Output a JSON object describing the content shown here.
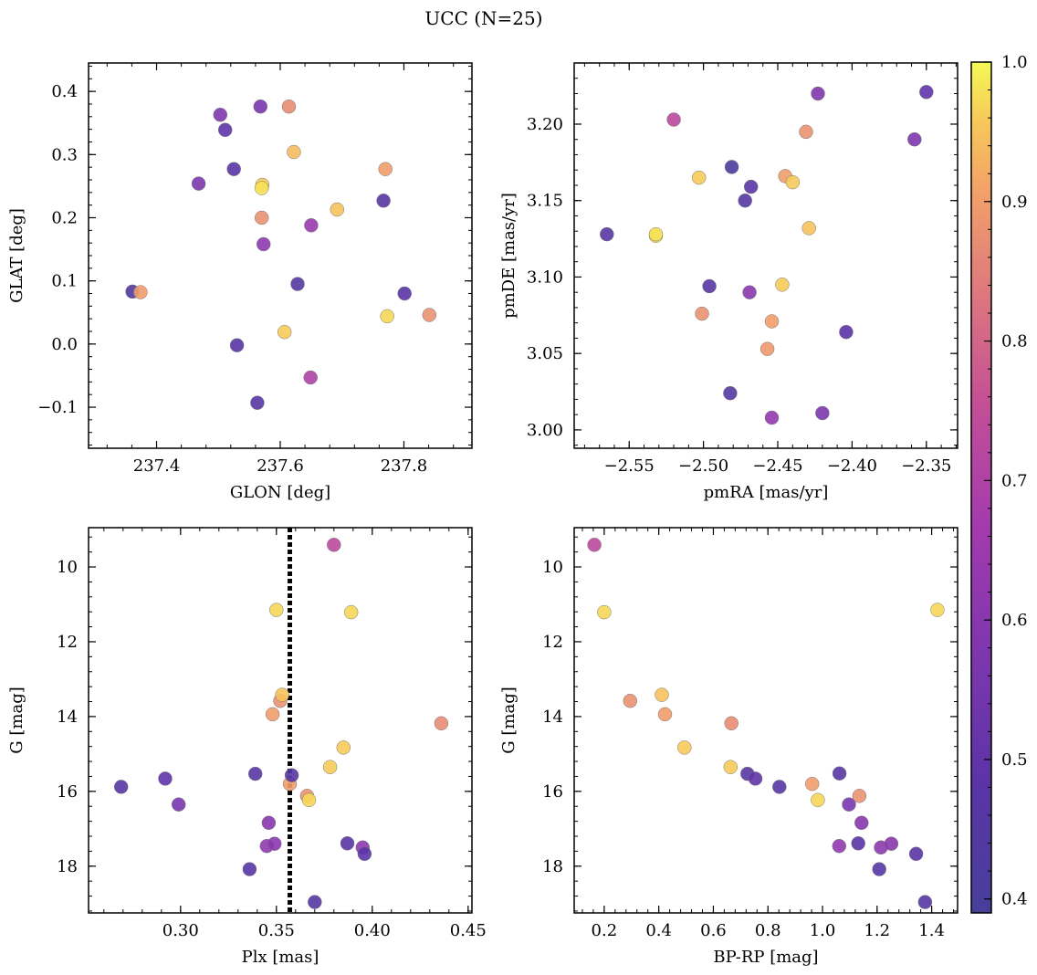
{
  "figure": {
    "title": "UCC (N=25)"
  },
  "colorbar": {
    "range": [
      0.39,
      1.0
    ],
    "ticks": [
      0.4,
      0.5,
      0.6,
      0.7,
      0.8,
      0.9,
      1.0
    ],
    "tick_labels": [
      "0.4",
      "0.5",
      "0.6",
      "0.7",
      "0.8",
      "0.9",
      "1.0"
    ],
    "colormap": "plasma",
    "colormap_stops": [
      [
        0.0,
        "#483f9a"
      ],
      [
        0.15,
        "#5a34a6"
      ],
      [
        0.3,
        "#7d36ae"
      ],
      [
        0.45,
        "#a23aae"
      ],
      [
        0.6,
        "#c44f96"
      ],
      [
        0.72,
        "#dc7580"
      ],
      [
        0.85,
        "#f3a268"
      ],
      [
        0.93,
        "#f7c85a"
      ],
      [
        1.0,
        "#f4f954"
      ]
    ]
  },
  "chart_data": [
    {
      "type": "scatter",
      "name": "sky",
      "title": "",
      "xlabel": "GLON [deg]",
      "ylabel": "GLAT [deg]",
      "xlim": [
        237.29,
        237.91
      ],
      "ylim": [
        -0.165,
        0.445
      ],
      "xticks": [
        237.4,
        237.6,
        237.8
      ],
      "xtick_labels": [
        "237.4",
        "237.6",
        "237.8"
      ],
      "yticks": [
        -0.1,
        0.0,
        0.1,
        0.2,
        0.3,
        0.4
      ],
      "ytick_labels": [
        "−0.1",
        "0.0",
        "0.1",
        "0.2",
        "0.3",
        "0.4"
      ],
      "y_inverted": false,
      "points": [
        {
          "x": 237.361,
          "y": 0.083,
          "c": 0.43
        },
        {
          "x": 237.374,
          "y": 0.082,
          "c": 0.9
        },
        {
          "x": 237.468,
          "y": 0.254,
          "c": 0.57
        },
        {
          "x": 237.503,
          "y": 0.363,
          "c": 0.58
        },
        {
          "x": 237.511,
          "y": 0.339,
          "c": 0.5
        },
        {
          "x": 237.525,
          "y": 0.277,
          "c": 0.47
        },
        {
          "x": 237.53,
          "y": -0.002,
          "c": 0.47
        },
        {
          "x": 237.563,
          "y": -0.093,
          "c": 0.47
        },
        {
          "x": 237.568,
          "y": 0.376,
          "c": 0.56
        },
        {
          "x": 237.57,
          "y": 0.2,
          "c": 0.88
        },
        {
          "x": 237.571,
          "y": 0.252,
          "c": 0.96
        },
        {
          "x": 237.57,
          "y": 0.247,
          "c": 0.98
        },
        {
          "x": 237.573,
          "y": 0.158,
          "c": 0.61
        },
        {
          "x": 237.607,
          "y": 0.019,
          "c": 0.96
        },
        {
          "x": 237.614,
          "y": 0.376,
          "c": 0.87
        },
        {
          "x": 237.622,
          "y": 0.304,
          "c": 0.94
        },
        {
          "x": 237.628,
          "y": 0.095,
          "c": 0.45
        },
        {
          "x": 237.649,
          "y": -0.053,
          "c": 0.7
        },
        {
          "x": 237.65,
          "y": 0.188,
          "c": 0.64
        },
        {
          "x": 237.692,
          "y": 0.213,
          "c": 0.95
        },
        {
          "x": 237.767,
          "y": 0.227,
          "c": 0.46
        },
        {
          "x": 237.77,
          "y": 0.277,
          "c": 0.9
        },
        {
          "x": 237.773,
          "y": 0.044,
          "c": 0.97
        },
        {
          "x": 237.801,
          "y": 0.08,
          "c": 0.48
        },
        {
          "x": 237.841,
          "y": 0.046,
          "c": 0.88
        }
      ]
    },
    {
      "type": "scatter",
      "name": "proper-motion",
      "title": "",
      "xlabel": "pmRA [mas/yr]",
      "ylabel": "pmDE [mas/yr]",
      "xlim": [
        -2.587,
        -2.329
      ],
      "ylim": [
        2.988,
        3.24
      ],
      "xticks": [
        -2.55,
        -2.5,
        -2.45,
        -2.4,
        -2.35
      ],
      "xtick_labels": [
        "−2.55",
        "−2.50",
        "−2.45",
        "−2.40",
        "−2.35"
      ],
      "yticks": [
        3.0,
        3.05,
        3.1,
        3.15,
        3.2
      ],
      "ytick_labels": [
        "3.00",
        "3.05",
        "3.10",
        "3.15",
        "3.20"
      ],
      "y_inverted": false,
      "points": [
        {
          "x": -2.565,
          "y": 3.128,
          "c": 0.46
        },
        {
          "x": -2.532,
          "y": 3.127,
          "c": 0.97
        },
        {
          "x": -2.532,
          "y": 3.128,
          "c": 0.98
        },
        {
          "x": -2.52,
          "y": 3.203,
          "c": 0.73
        },
        {
          "x": -2.503,
          "y": 3.165,
          "c": 0.96
        },
        {
          "x": -2.501,
          "y": 3.076,
          "c": 0.88
        },
        {
          "x": -2.496,
          "y": 3.094,
          "c": 0.47
        },
        {
          "x": -2.482,
          "y": 3.024,
          "c": 0.45
        },
        {
          "x": -2.481,
          "y": 3.172,
          "c": 0.42
        },
        {
          "x": -2.472,
          "y": 3.15,
          "c": 0.46
        },
        {
          "x": -2.468,
          "y": 3.159,
          "c": 0.47
        },
        {
          "x": -2.469,
          "y": 3.09,
          "c": 0.6
        },
        {
          "x": -2.457,
          "y": 3.053,
          "c": 0.89
        },
        {
          "x": -2.454,
          "y": 3.071,
          "c": 0.9
        },
        {
          "x": -2.454,
          "y": 3.008,
          "c": 0.63
        },
        {
          "x": -2.447,
          "y": 3.095,
          "c": 0.96
        },
        {
          "x": -2.445,
          "y": 3.166,
          "c": 0.9
        },
        {
          "x": -2.44,
          "y": 3.162,
          "c": 0.96
        },
        {
          "x": -2.431,
          "y": 3.195,
          "c": 0.88
        },
        {
          "x": -2.429,
          "y": 3.132,
          "c": 0.95
        },
        {
          "x": -2.423,
          "y": 3.22,
          "c": 0.58
        },
        {
          "x": -2.42,
          "y": 3.011,
          "c": 0.57
        },
        {
          "x": -2.404,
          "y": 3.064,
          "c": 0.48
        },
        {
          "x": -2.358,
          "y": 3.19,
          "c": 0.58
        },
        {
          "x": -2.35,
          "y": 3.221,
          "c": 0.5
        }
      ]
    },
    {
      "type": "scatter",
      "name": "parallax-magnitude",
      "title": "",
      "xlabel": "Plx [mas]",
      "ylabel": "G [mag]",
      "xlim": [
        0.252,
        0.452
      ],
      "ylim": [
        8.95,
        19.25
      ],
      "xticks": [
        0.3,
        0.35,
        0.4,
        0.45
      ],
      "xtick_labels": [
        "0.30",
        "0.35",
        "0.40",
        "0.45"
      ],
      "yticks": [
        10,
        12,
        14,
        16,
        18
      ],
      "ytick_labels": [
        "10",
        "12",
        "14",
        "16",
        "18"
      ],
      "y_inverted": true,
      "vline": 0.357,
      "points": [
        {
          "x": 0.269,
          "y": 15.88,
          "c": 0.47
        },
        {
          "x": 0.292,
          "y": 15.66,
          "c": 0.5
        },
        {
          "x": 0.299,
          "y": 16.35,
          "c": 0.56
        },
        {
          "x": 0.336,
          "y": 18.08,
          "c": 0.47
        },
        {
          "x": 0.339,
          "y": 15.53,
          "c": 0.46
        },
        {
          "x": 0.345,
          "y": 17.46,
          "c": 0.62
        },
        {
          "x": 0.346,
          "y": 16.84,
          "c": 0.6
        },
        {
          "x": 0.348,
          "y": 13.94,
          "c": 0.9
        },
        {
          "x": 0.349,
          "y": 17.4,
          "c": 0.6
        },
        {
          "x": 0.35,
          "y": 11.15,
          "c": 0.97
        },
        {
          "x": 0.352,
          "y": 13.58,
          "c": 0.88
        },
        {
          "x": 0.353,
          "y": 13.42,
          "c": 0.95
        },
        {
          "x": 0.357,
          "y": 15.8,
          "c": 0.9
        },
        {
          "x": 0.358,
          "y": 15.57,
          "c": 0.46
        },
        {
          "x": 0.366,
          "y": 16.12,
          "c": 0.88
        },
        {
          "x": 0.367,
          "y": 16.23,
          "c": 0.97
        },
        {
          "x": 0.37,
          "y": 18.96,
          "c": 0.46
        },
        {
          "x": 0.378,
          "y": 15.35,
          "c": 0.96
        },
        {
          "x": 0.38,
          "y": 9.41,
          "c": 0.73
        },
        {
          "x": 0.385,
          "y": 14.83,
          "c": 0.96
        },
        {
          "x": 0.387,
          "y": 17.39,
          "c": 0.47
        },
        {
          "x": 0.389,
          "y": 11.21,
          "c": 0.97
        },
        {
          "x": 0.395,
          "y": 17.5,
          "c": 0.61
        },
        {
          "x": 0.396,
          "y": 17.67,
          "c": 0.48
        },
        {
          "x": 0.436,
          "y": 14.18,
          "c": 0.87
        }
      ]
    },
    {
      "type": "scatter",
      "name": "color-magnitude",
      "title": "",
      "xlabel": "BP-RP [mag]",
      "ylabel": "G [mag]",
      "xlim": [
        0.09,
        1.495
      ],
      "ylim": [
        8.95,
        19.25
      ],
      "xticks": [
        0.2,
        0.4,
        0.6,
        0.8,
        1.0,
        1.2,
        1.4
      ],
      "xtick_labels": [
        "0.2",
        "0.4",
        "0.6",
        "0.8",
        "1.0",
        "1.2",
        "1.4"
      ],
      "yticks": [
        10,
        12,
        14,
        16,
        18
      ],
      "ytick_labels": [
        "10",
        "12",
        "14",
        "16",
        "18"
      ],
      "y_inverted": true,
      "points": [
        {
          "x": 0.164,
          "y": 9.41,
          "c": 0.73
        },
        {
          "x": 0.2,
          "y": 11.21,
          "c": 0.97
        },
        {
          "x": 0.295,
          "y": 13.58,
          "c": 0.88
        },
        {
          "x": 0.411,
          "y": 13.42,
          "c": 0.95
        },
        {
          "x": 0.423,
          "y": 13.94,
          "c": 0.9
        },
        {
          "x": 0.494,
          "y": 14.83,
          "c": 0.96
        },
        {
          "x": 0.666,
          "y": 14.18,
          "c": 0.87
        },
        {
          "x": 0.663,
          "y": 15.35,
          "c": 0.96
        },
        {
          "x": 0.725,
          "y": 15.53,
          "c": 0.46
        },
        {
          "x": 0.754,
          "y": 15.66,
          "c": 0.5
        },
        {
          "x": 0.842,
          "y": 15.88,
          "c": 0.47
        },
        {
          "x": 0.962,
          "y": 15.8,
          "c": 0.9
        },
        {
          "x": 0.983,
          "y": 16.23,
          "c": 0.97
        },
        {
          "x": 1.062,
          "y": 15.52,
          "c": 0.46
        },
        {
          "x": 1.061,
          "y": 17.46,
          "c": 0.62
        },
        {
          "x": 1.097,
          "y": 16.35,
          "c": 0.56
        },
        {
          "x": 1.131,
          "y": 17.39,
          "c": 0.47
        },
        {
          "x": 1.135,
          "y": 16.12,
          "c": 0.88
        },
        {
          "x": 1.143,
          "y": 16.84,
          "c": 0.6
        },
        {
          "x": 1.208,
          "y": 18.08,
          "c": 0.47
        },
        {
          "x": 1.214,
          "y": 17.5,
          "c": 0.61
        },
        {
          "x": 1.252,
          "y": 17.4,
          "c": 0.6
        },
        {
          "x": 1.343,
          "y": 17.67,
          "c": 0.48
        },
        {
          "x": 1.376,
          "y": 18.96,
          "c": 0.46
        },
        {
          "x": 1.421,
          "y": 11.15,
          "c": 0.97
        }
      ]
    }
  ]
}
